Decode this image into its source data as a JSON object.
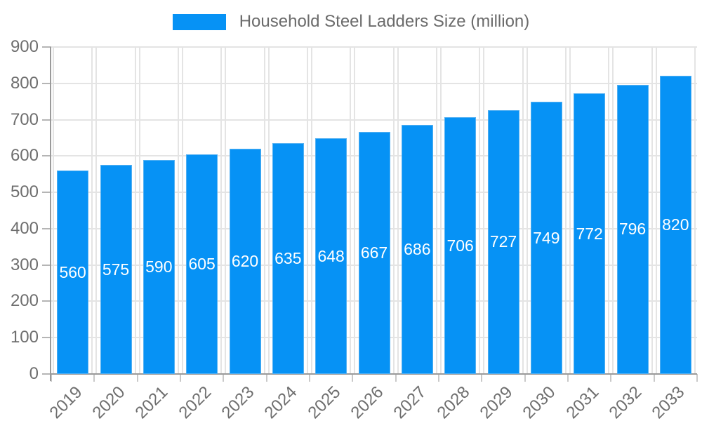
{
  "legend": {
    "label": "Household Steel Ladders Size (million)"
  },
  "chart_data": {
    "type": "bar",
    "title": "Household Steel Ladders Size (million)",
    "categories": [
      "2019",
      "2020",
      "2021",
      "2022",
      "2023",
      "2024",
      "2025",
      "2026",
      "2027",
      "2028",
      "2029",
      "2030",
      "2031",
      "2032",
      "2033"
    ],
    "values": [
      560,
      575,
      590,
      605,
      620,
      635,
      648,
      667,
      686,
      706,
      727,
      749,
      772,
      796,
      820
    ],
    "xlabel": "",
    "ylabel": "",
    "ylim": [
      0,
      900
    ],
    "ytick_interval": 100,
    "grid": true,
    "legend_position": "top-center",
    "value_labels": "inside-middle",
    "colors": {
      "bar": "#0692f5",
      "bar_edge": "#55b1f2",
      "value_label": "#ffffff",
      "grid": "#e4e4e4",
      "axis": "#9a9a9a",
      "y_tick": "#b5b5b5",
      "x_tick": "#c9c9c9",
      "tick_text": "#6e6e6e",
      "legend_text": "#6b6b6b"
    }
  }
}
